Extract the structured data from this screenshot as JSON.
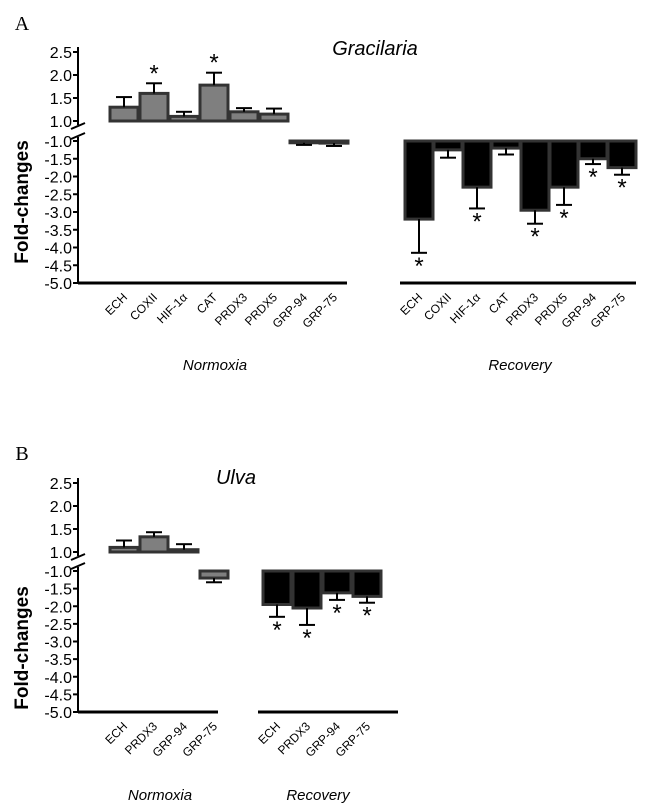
{
  "chart_data": [
    {
      "type": "bar",
      "panel_letter": "A",
      "title": "Gracilaria",
      "ylabel": "Fold-changes",
      "upper_ticks": [
        "2.5",
        "2.0",
        "1.5",
        "1.0"
      ],
      "lower_ticks": [
        "-1.0",
        "-1.5",
        "-2.0",
        "-2.5",
        "-3.0",
        "-3.5",
        "-4.0",
        "-4.5",
        "-5.0"
      ],
      "groups": [
        {
          "label": "Normoxia",
          "bar_color": "#7f7f7f",
          "categories": [
            "ECH",
            "COXII",
            "HIF-1α",
            "CAT",
            "PRDX3",
            "PRDX5",
            "GRP-94",
            "GRP-75"
          ],
          "values": [
            1.3,
            1.6,
            1.1,
            1.78,
            1.2,
            1.15,
            -1.05,
            -1.06
          ],
          "errors": [
            0.22,
            0.22,
            0.1,
            0.27,
            0.08,
            0.12,
            0.06,
            0.08
          ],
          "significant": [
            false,
            true,
            false,
            true,
            false,
            false,
            false,
            false
          ]
        },
        {
          "label": "Recovery",
          "bar_color": "#000000",
          "categories": [
            "ECH",
            "COXII",
            "HIF-1α",
            "CAT",
            "PRDX3",
            "PRDX5",
            "GRP-94",
            "GRP-75"
          ],
          "values": [
            -3.2,
            -1.25,
            -2.3,
            -1.2,
            -2.95,
            -2.3,
            -1.5,
            -1.75
          ],
          "errors": [
            0.95,
            0.22,
            0.6,
            0.18,
            0.38,
            0.5,
            0.15,
            0.2
          ],
          "significant": [
            true,
            false,
            true,
            false,
            true,
            true,
            true,
            true
          ]
        }
      ]
    },
    {
      "type": "bar",
      "panel_letter": "B",
      "title": "Ulva",
      "ylabel": "Fold-changes",
      "upper_ticks": [
        "2.5",
        "2.0",
        "1.5",
        "1.0"
      ],
      "lower_ticks": [
        "-1.0",
        "-1.5",
        "-2.0",
        "-2.5",
        "-3.0",
        "-3.5",
        "-4.0",
        "-4.5",
        "-5.0"
      ],
      "groups": [
        {
          "label": "Normoxia",
          "bar_color": "#7f7f7f",
          "categories": [
            "ECH",
            "PRDX3",
            "GRP-94",
            "GRP-75"
          ],
          "values": [
            1.1,
            1.33,
            1.05,
            -1.2
          ],
          "errors": [
            0.15,
            0.1,
            0.12,
            0.12
          ],
          "significant": [
            false,
            false,
            false,
            false
          ]
        },
        {
          "label": "Recovery",
          "bar_color": "#000000",
          "categories": [
            "ECH",
            "PRDX3",
            "GRP-94",
            "GRP-75"
          ],
          "values": [
            -1.95,
            -2.05,
            -1.62,
            -1.72
          ],
          "errors": [
            0.35,
            0.48,
            0.2,
            0.18
          ],
          "significant": [
            true,
            true,
            true,
            true
          ]
        }
      ]
    }
  ]
}
